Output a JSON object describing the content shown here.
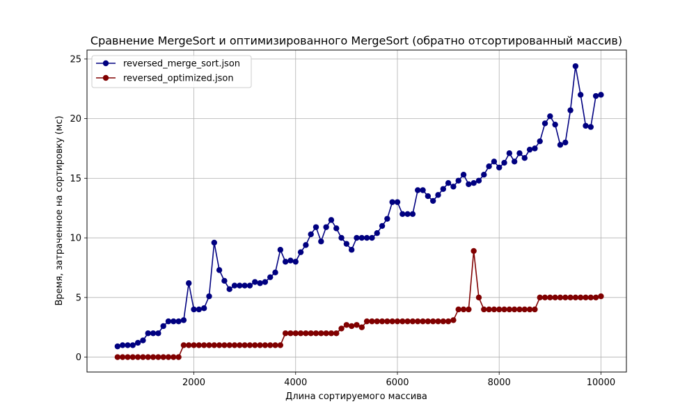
{
  "chart_data": {
    "type": "line",
    "title": "Сравнение MergeSort и оптимизированного MergeSort (обратно отсортированный массив)",
    "xlabel": "Длина сортируемого массива",
    "ylabel": "Время, затраченное на сортировку (мс)",
    "xlim": [
      -100,
      10500
    ],
    "ylim": [
      -1.25,
      25.75
    ],
    "xticks": [
      2000,
      4000,
      6000,
      8000,
      10000
    ],
    "yticks": [
      0,
      5,
      10,
      15,
      20,
      25
    ],
    "grid": true,
    "legend_position": "top-left",
    "x": [
      500,
      600,
      700,
      800,
      900,
      1000,
      1100,
      1200,
      1300,
      1400,
      1500,
      1600,
      1700,
      1800,
      1900,
      2000,
      2100,
      2200,
      2300,
      2400,
      2500,
      2600,
      2700,
      2800,
      2900,
      3000,
      3100,
      3200,
      3300,
      3400,
      3500,
      3600,
      3700,
      3800,
      3900,
      4000,
      4100,
      4200,
      4300,
      4400,
      4500,
      4600,
      4700,
      4800,
      4900,
      5000,
      5100,
      5200,
      5300,
      5400,
      5500,
      5600,
      5700,
      5800,
      5900,
      6000,
      6100,
      6200,
      6300,
      6400,
      6500,
      6600,
      6700,
      6800,
      6900,
      7000,
      7100,
      7200,
      7300,
      7400,
      7500,
      7600,
      7700,
      7800,
      7900,
      8000,
      8100,
      8200,
      8300,
      8400,
      8500,
      8600,
      8700,
      8800,
      8900,
      9000,
      9100,
      9200,
      9300,
      9400,
      9500,
      9600,
      9700,
      9800,
      9900,
      10000
    ],
    "series": [
      {
        "name": "reversed_merge_sort.json",
        "color": "#000080",
        "values": [
          0.9,
          1.0,
          1.0,
          1.0,
          1.2,
          1.4,
          2.0,
          2.0,
          2.0,
          2.6,
          3.0,
          3.0,
          3.0,
          3.1,
          6.2,
          4.0,
          4.0,
          4.1,
          5.1,
          9.6,
          7.3,
          6.4,
          5.7,
          6.0,
          6.0,
          6.0,
          6.0,
          6.3,
          6.2,
          6.3,
          6.7,
          7.1,
          9.0,
          8.0,
          8.1,
          8.0,
          8.8,
          9.4,
          10.3,
          10.9,
          9.7,
          10.9,
          11.5,
          10.8,
          10.0,
          9.5,
          9.0,
          10.0,
          10.0,
          10.0,
          10.0,
          10.4,
          11.0,
          11.6,
          13.0,
          13.0,
          12.0,
          12.0,
          12.0,
          14.0,
          14.0,
          13.5,
          13.1,
          13.6,
          14.1,
          14.6,
          14.3,
          14.8,
          15.3,
          14.5,
          14.6,
          14.8,
          15.3,
          16.0,
          16.4,
          15.9,
          16.3,
          17.1,
          16.4,
          17.1,
          16.7,
          17.4,
          17.5,
          18.1,
          19.6,
          20.2,
          19.5,
          17.8,
          18.0,
          20.7,
          24.4,
          22.0,
          19.4,
          19.3,
          21.9,
          22.0
        ]
      },
      {
        "name": "reversed_optimized.json",
        "color": "#800000",
        "values": [
          0,
          0,
          0,
          0,
          0,
          0,
          0,
          0,
          0,
          0,
          0,
          0,
          0,
          1.0,
          1.0,
          1.0,
          1.0,
          1.0,
          1.0,
          1.0,
          1.0,
          1.0,
          1.0,
          1.0,
          1.0,
          1.0,
          1.0,
          1.0,
          1.0,
          1.0,
          1.0,
          1.0,
          1.0,
          2.0,
          2.0,
          2.0,
          2.0,
          2.0,
          2.0,
          2.0,
          2.0,
          2.0,
          2.0,
          2.0,
          2.4,
          2.7,
          2.6,
          2.7,
          2.5,
          3.0,
          3.0,
          3.0,
          3.0,
          3.0,
          3.0,
          3.0,
          3.0,
          3.0,
          3.0,
          3.0,
          3.0,
          3.0,
          3.0,
          3.0,
          3.0,
          3.0,
          3.1,
          4.0,
          4.0,
          4.0,
          8.9,
          5.0,
          4.0,
          4.0,
          4.0,
          4.0,
          4.0,
          4.0,
          4.0,
          4.0,
          4.0,
          4.0,
          4.0,
          5.0,
          5.0,
          5.0,
          5.0,
          5.0,
          5.0,
          5.0,
          5.0,
          5.0,
          5.0,
          5.0,
          5.0,
          5.1
        ]
      }
    ]
  }
}
